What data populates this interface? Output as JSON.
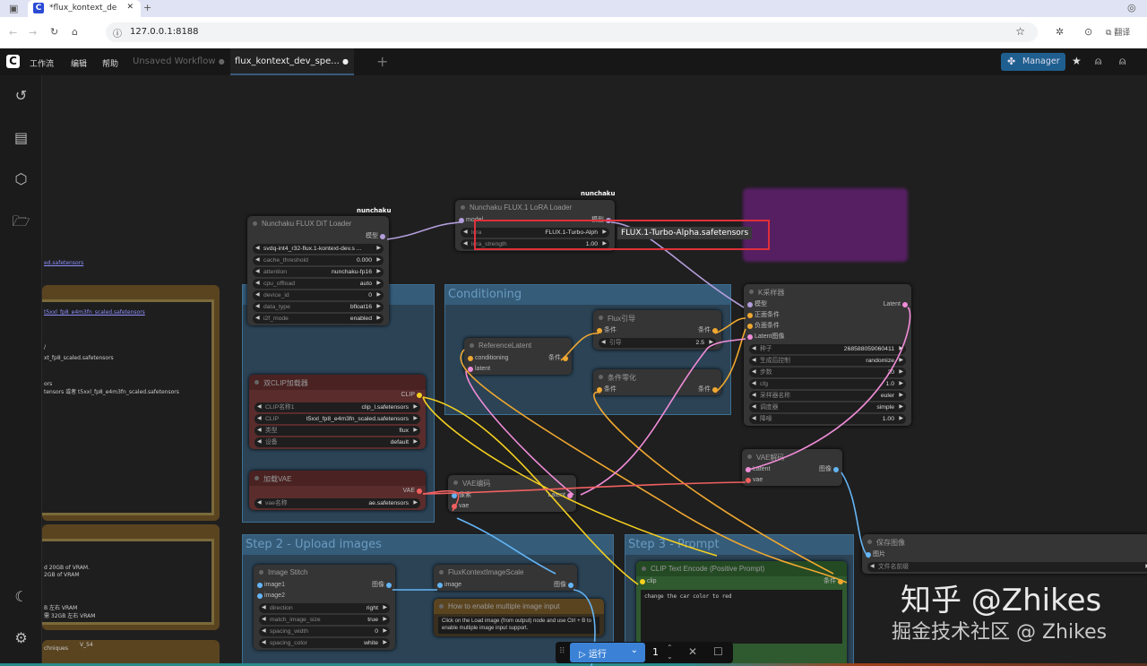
{
  "browser": {
    "tab_title": "*flux_kontext_de",
    "url": "127.0.0.1:8188",
    "translate": "翻译"
  },
  "menubar": {
    "menus": [
      "工作流",
      "编辑",
      "帮助"
    ],
    "tabs": [
      {
        "label": "Unsaved Workflow",
        "active": false
      },
      {
        "label": "flux_kontext_dev_spe...",
        "active": true
      }
    ],
    "manager_label": "Manager"
  },
  "groups": {
    "conditioning": "Conditioning",
    "step2": "Step 2 - Upload images",
    "step3": "Step 3 - Prompt"
  },
  "tooltip": "FLUX.1-Turbo-Alpha.safetensors",
  "nodes": {
    "dit_loader": {
      "title": "Nunchaku FLUX DiT Loader",
      "badge": "nunchaku",
      "inputs": [],
      "outputs": [
        "模型"
      ],
      "widgets": [
        {
          "label": "",
          "value": "svdq-int4_r32-flux.1-kontext-dev.s ..."
        },
        {
          "label": "cache_threshold",
          "value": "0.000"
        },
        {
          "label": "attention",
          "value": "nunchaku-fp16"
        },
        {
          "label": "cpu_offload",
          "value": "auto"
        },
        {
          "label": "device_id",
          "value": "0"
        },
        {
          "label": "data_type",
          "value": "bfloat16"
        },
        {
          "label": "i2f_mode",
          "value": "enabled"
        }
      ]
    },
    "lora_loader": {
      "title": "Nunchaku FLUX.1 LoRA Loader",
      "badge": "nunchaku",
      "inputs": [
        "model"
      ],
      "outputs": [
        "模型"
      ],
      "widgets": [
        {
          "label": "lora",
          "value": "FLUX.1-Turbo-Alph"
        },
        {
          "label": "lora_strength",
          "value": "1.00"
        }
      ]
    },
    "reference_latent": {
      "title": "ReferenceLatent",
      "inputs": [
        "conditioning",
        "latent"
      ],
      "outputs": [
        "条件"
      ],
      "widgets": []
    },
    "flux_guidance": {
      "title": "Flux引导",
      "inputs": [
        "条件"
      ],
      "outputs": [
        "条件"
      ],
      "widgets": [
        {
          "label": "引导",
          "value": "2.5"
        }
      ]
    },
    "cond_zero": {
      "title": "条件零化",
      "inputs": [
        "条件"
      ],
      "outputs": [
        "条件"
      ],
      "widgets": []
    },
    "ksampler": {
      "title": "K采样器",
      "inputs": [
        "模型",
        "正面条件",
        "负面条件",
        "Latent图像"
      ],
      "outputs": [
        "Latent"
      ],
      "widgets": [
        {
          "label": "种子",
          "value": "268588059060411"
        },
        {
          "label": "生成后控制",
          "value": "randomize"
        },
        {
          "label": "步数",
          "value": "20"
        },
        {
          "label": "cfg",
          "value": "1.0"
        },
        {
          "label": "采样器名称",
          "value": "euler"
        },
        {
          "label": "调度器",
          "value": "simple"
        },
        {
          "label": "降噪",
          "value": "1.00"
        }
      ]
    },
    "dual_clip": {
      "title": "双CLIP加载器",
      "inputs": [],
      "outputs": [
        "CLIP"
      ],
      "widgets": [
        {
          "label": "CLIP名称1",
          "value": "clip_l.safetensors"
        },
        {
          "label": "CLIP",
          "value": "t5xxl_fp8_e4m3fn_scaled.safetensors"
        },
        {
          "label": "类型",
          "value": "flux"
        },
        {
          "label": "设备",
          "value": "default"
        }
      ]
    },
    "vae_loader": {
      "title": "加载VAE",
      "inputs": [],
      "outputs": [
        "VAE"
      ],
      "widgets": [
        {
          "label": "vae名称",
          "value": "ae.safetensors"
        }
      ]
    },
    "vae_encode": {
      "title": "VAE编码",
      "inputs": [
        "像素",
        "vae"
      ],
      "outputs": [
        "Latent"
      ],
      "widgets": []
    },
    "vae_decode": {
      "title": "VAE解码",
      "inputs": [
        "Latent",
        "vae"
      ],
      "outputs": [
        "图像"
      ],
      "widgets": []
    },
    "save_image": {
      "title": "保存图像",
      "inputs": [
        "图片"
      ],
      "outputs": [],
      "widgets": [
        {
          "label": "文件名前缀",
          "value": ""
        }
      ]
    },
    "image_stitch": {
      "title": "Image Stitch",
      "inputs": [
        "image1",
        "image2"
      ],
      "outputs": [
        "图像"
      ],
      "widgets": [
        {
          "label": "direction",
          "value": "right"
        },
        {
          "label": "match_image_size",
          "value": "true"
        },
        {
          "label": "spacing_width",
          "value": "0"
        },
        {
          "label": "spacing_color",
          "value": "white"
        }
      ]
    },
    "kontext_scale": {
      "title": "FluxKontextImageScale",
      "inputs": [
        "image"
      ],
      "outputs": [
        "图像"
      ],
      "widgets": []
    },
    "note_multi": {
      "title": "How to enable multiple image input",
      "inputs": [],
      "outputs": [],
      "widgets": [],
      "text": "Click on the Load image (from output) node and use Ctrl + B to enable multiple image input support."
    },
    "clip_text": {
      "title": "CLIP Text Encode (Positive Prompt)",
      "inputs": [
        "clip"
      ],
      "outputs": [
        "条件"
      ],
      "widgets": [],
      "text": "change the car color to red"
    }
  },
  "left_notes": [
    "ed.safetensors",
    "t5xxl_fp8_e4m3fn_scaled.safetensors",
    "/",
    "xt_fp8_scaled.safetensors",
    "ors",
    "tensors 或者 t5xxl_fp8_e4m3fn_scaled.safetensors",
    "d 20GB of VRAM.",
    "2GB of VRAM",
    "B 左右 VRAM",
    "需 32GB 左右 VRAM",
    "V_54",
    "chniques"
  ],
  "run_bar": {
    "run_label": "运行",
    "count": "1"
  },
  "watermark": {
    "line1": "知乎 @Zhikes",
    "line2": "掘金技术社区 @ Zhikes"
  },
  "colors": {
    "model": "#b39ddb",
    "conditioning": "#f0a830",
    "latent": "#f08cd8",
    "clip": "#f5d020",
    "vae": "#f06060",
    "image": "#64b5f6",
    "accent": "#3b82d6"
  }
}
